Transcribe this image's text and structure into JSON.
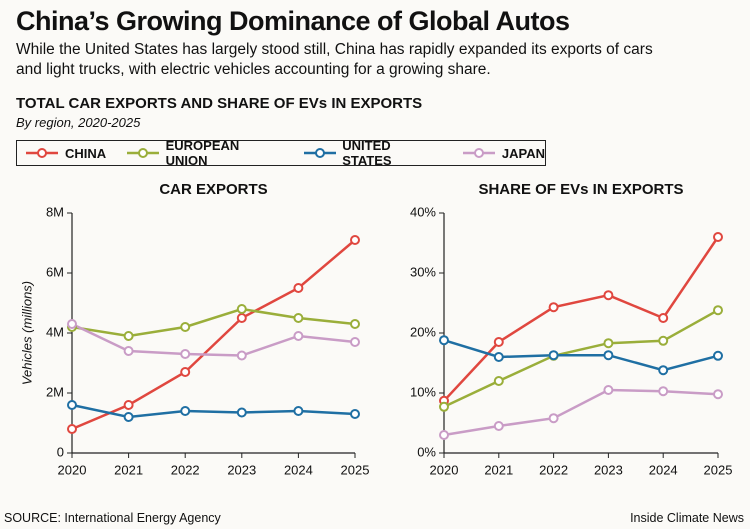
{
  "title": "China’s Growing Dominance of Global Autos",
  "subtitle": "While the United States has largely stood still, China has rapidly expanded its exports of cars and light trucks, with electric vehicles accounting for a growing share.",
  "section_title": "TOTAL CAR EXPORTS AND SHARE OF EVs IN EXPORTS",
  "section_subtitle": "By region, 2020-2025",
  "source": "SOURCE: International Energy Agency",
  "credit": "Inside Climate News",
  "chart_data": [
    {
      "type": "line",
      "title": "CAR EXPORTS",
      "ylabel": "Vehicles (millions)",
      "x": [
        2020,
        2021,
        2022,
        2023,
        2024,
        2025
      ],
      "xlim": [
        2020,
        2025
      ],
      "xticks": [
        2020,
        2021,
        2022,
        2023,
        2024,
        2025
      ],
      "ylim": [
        0,
        8
      ],
      "yticks": [
        0,
        {
          "value": 2,
          "label": "2M"
        },
        {
          "value": 4,
          "label": "4M"
        },
        {
          "value": 6,
          "label": "6M"
        },
        {
          "value": 8,
          "label": "8M"
        }
      ],
      "grid": false,
      "series": [
        {
          "name": "CHINA",
          "color": "#e0473f",
          "values": [
            0.8,
            1.6,
            2.7,
            4.5,
            5.5,
            7.1
          ]
        },
        {
          "name": "EUROPEAN UNION",
          "color": "#9aae3a",
          "values": [
            4.2,
            3.9,
            4.2,
            4.8,
            4.5,
            4.3
          ]
        },
        {
          "name": "UNITED STATES",
          "color": "#1f6fa3",
          "values": [
            1.6,
            1.2,
            1.4,
            1.35,
            1.4,
            1.3
          ]
        },
        {
          "name": "JAPAN",
          "color": "#c99cc6",
          "values": [
            4.3,
            3.4,
            3.3,
            3.25,
            3.9,
            3.7
          ]
        }
      ]
    },
    {
      "type": "line",
      "title": "SHARE OF EVs IN EXPORTS",
      "x": [
        2020,
        2021,
        2022,
        2023,
        2024,
        2025
      ],
      "xlim": [
        2020,
        2025
      ],
      "xticks": [
        2020,
        2021,
        2022,
        2023,
        2024,
        2025
      ],
      "ylim": [
        0,
        40
      ],
      "yticks": [
        {
          "value": 0,
          "label": "0%"
        },
        {
          "value": 10,
          "label": "10%"
        },
        {
          "value": 20,
          "label": "20%"
        },
        {
          "value": 30,
          "label": "30%"
        },
        {
          "value": 40,
          "label": "40%"
        }
      ],
      "grid": false,
      "series": [
        {
          "name": "CHINA",
          "color": "#e0473f",
          "values": [
            8.7,
            18.5,
            24.3,
            26.3,
            22.5,
            36
          ]
        },
        {
          "name": "EUROPEAN UNION",
          "color": "#9aae3a",
          "values": [
            7.7,
            12,
            16.2,
            18.3,
            18.7,
            23.8
          ]
        },
        {
          "name": "UNITED STATES",
          "color": "#1f6fa3",
          "values": [
            18.8,
            16,
            16.3,
            16.3,
            13.8,
            16.2
          ]
        },
        {
          "name": "JAPAN",
          "color": "#c99cc6",
          "values": [
            3,
            4.5,
            5.8,
            10.5,
            10.3,
            9.8
          ]
        }
      ]
    }
  ]
}
